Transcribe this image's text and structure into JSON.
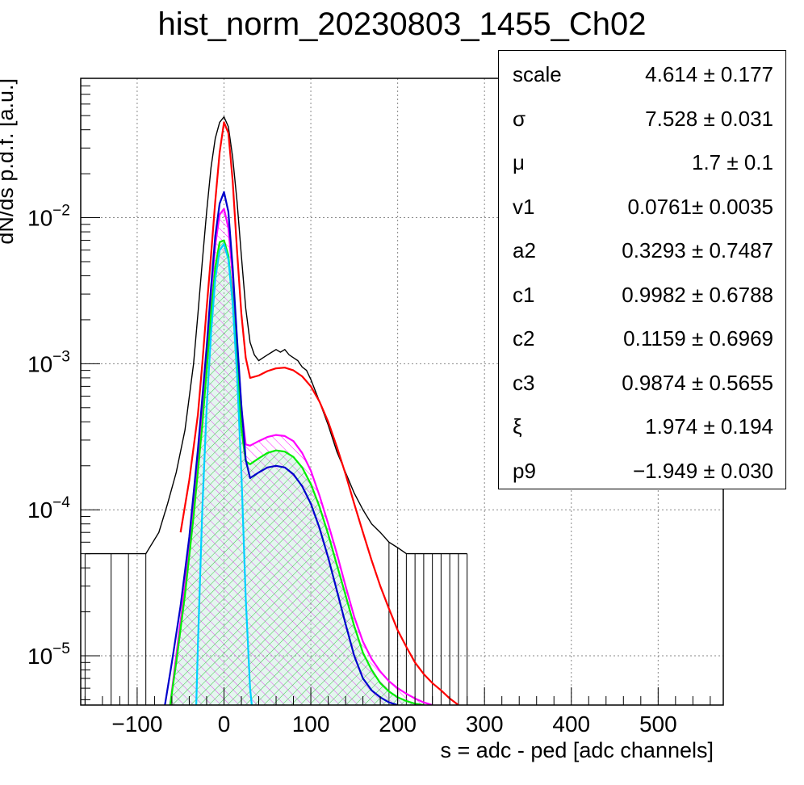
{
  "chart_data": {
    "type": "line",
    "title": "hist_norm_20230803_1455_Ch02",
    "xlabel": "s = adc - ped [adc channels]",
    "ylabel": "dN/ds p.d.f. [a.u.]",
    "xlim": [
      -165,
      575
    ],
    "ylim": [
      4.6e-06,
      0.09
    ],
    "yscale": "log",
    "grid": true,
    "x_ticks": [
      -100,
      0,
      100,
      200,
      300,
      400,
      500
    ],
    "x_tick_labels": [
      "−100",
      "0",
      "100",
      "200",
      "300",
      "400",
      "500"
    ],
    "y_ticks": [
      1e-05,
      0.0001,
      0.001,
      0.01
    ],
    "y_tick_mantissa": "10",
    "y_tick_exponents": [
      "−5",
      "−4",
      "−3",
      "−2"
    ],
    "stats_legend_placement": "top-right",
    "stats": [
      {
        "name": "scale",
        "value": "4.614 ± 0.177"
      },
      {
        "name": "σ",
        "value": "7.528 ± 0.031"
      },
      {
        "name": "μ",
        "value": "1.7 ± 0.1"
      },
      {
        "name": "v1",
        "value": "0.0761± 0.0035"
      },
      {
        "name": "a2",
        "value": "0.3293 ± 0.7487"
      },
      {
        "name": "c1",
        "value": "0.9982 ± 0.6788"
      },
      {
        "name": "c2",
        "value": "0.1159 ± 0.6969"
      },
      {
        "name": "c3",
        "value": "0.9874 ± 0.5655"
      },
      {
        "name": "ξ",
        "value": "1.974 ± 0.194"
      },
      {
        "name": "p9",
        "value": "−1.949 ± 0.030"
      }
    ],
    "series": [
      {
        "color": "#000000",
        "style": "histogram",
        "x": [
          -160,
          -130,
          -110,
          -90,
          -75,
          -65,
          -55,
          -45,
          -35,
          -30,
          -25,
          -20,
          -15,
          -10,
          -5,
          0,
          5,
          10,
          15,
          20,
          25,
          30,
          35,
          40,
          45,
          50,
          55,
          60,
          65,
          70,
          75,
          80,
          85,
          90,
          95,
          100,
          110,
          120,
          130,
          140,
          150,
          160,
          170,
          180,
          190,
          200,
          210,
          220,
          230,
          240,
          250,
          260,
          270,
          280
        ],
        "y": [
          5e-05,
          5e-05,
          5e-05,
          5e-05,
          7e-05,
          0.00011,
          0.00018,
          0.00035,
          0.001,
          0.0022,
          0.005,
          0.011,
          0.022,
          0.035,
          0.045,
          0.049,
          0.042,
          0.026,
          0.013,
          0.0055,
          0.0024,
          0.0014,
          0.00115,
          0.00105,
          0.0011,
          0.00115,
          0.0012,
          0.00125,
          0.0012,
          0.00125,
          0.00115,
          0.0011,
          0.00105,
          0.00095,
          0.0009,
          0.00078,
          0.00055,
          0.00038,
          0.00025,
          0.00018,
          0.00013,
          0.0001,
          8e-05,
          7e-05,
          6e-05,
          5.5e-05,
          5e-05,
          5e-05,
          5e-05,
          5e-05,
          5e-05,
          5e-05,
          5e-05,
          5e-05
        ]
      },
      {
        "color": "#ff0000",
        "style": "line",
        "x": [
          -50,
          -40,
          -30,
          -25,
          -20,
          -15,
          -10,
          -5,
          0,
          5,
          10,
          15,
          20,
          25,
          30,
          40,
          50,
          60,
          70,
          80,
          90,
          100,
          110,
          120,
          130,
          140,
          150,
          160,
          170,
          180,
          190,
          200,
          210,
          220,
          230,
          240,
          250,
          260,
          270
        ],
        "y": [
          7e-05,
          0.00016,
          0.00045,
          0.001,
          0.0024,
          0.0055,
          0.013,
          0.028,
          0.045,
          0.038,
          0.018,
          0.006,
          0.0022,
          0.0011,
          0.0008,
          0.00083,
          0.00089,
          0.00093,
          0.00094,
          0.0009,
          0.00082,
          0.0007,
          0.00055,
          0.0004,
          0.00027,
          0.000175,
          0.00011,
          7e-05,
          4.5e-05,
          3e-05,
          2.1e-05,
          1.5e-05,
          1.15e-05,
          9e-06,
          7.5e-06,
          6.5e-06,
          5.8e-06,
          5.1e-06,
          4.6e-06
        ]
      },
      {
        "color": "#ff00ff",
        "style": "hatched-area",
        "x": [
          -62,
          -55,
          -45,
          -35,
          -25,
          -20,
          -15,
          -10,
          -5,
          0,
          5,
          10,
          15,
          20,
          25,
          30,
          40,
          50,
          60,
          70,
          80,
          90,
          100,
          110,
          120,
          130,
          140,
          150,
          160,
          170,
          180,
          190,
          200,
          210,
          220,
          230,
          240
        ],
        "y": [
          4.6e-06,
          1e-05,
          3e-05,
          0.00011,
          0.0005,
          0.0012,
          0.003,
          0.0065,
          0.0105,
          0.0115,
          0.0085,
          0.004,
          0.0014,
          0.0005,
          0.00028,
          0.000275,
          0.000295,
          0.000315,
          0.000325,
          0.00032,
          0.000295,
          0.000245,
          0.000185,
          0.000125,
          8e-05,
          5e-05,
          3e-05,
          1.85e-05,
          1.25e-05,
          9.5e-06,
          7.8e-06,
          6.7e-06,
          6e-06,
          5.5e-06,
          5.1e-06,
          4.8e-06,
          4.6e-06
        ]
      },
      {
        "color": "#00ee00",
        "style": "hatched-area",
        "x": [
          -62,
          -55,
          -45,
          -35,
          -25,
          -20,
          -15,
          -10,
          -5,
          0,
          5,
          10,
          15,
          20,
          25,
          30,
          40,
          50,
          60,
          70,
          80,
          90,
          100,
          110,
          120,
          130,
          140,
          150,
          160,
          170,
          180,
          190,
          200,
          210,
          220,
          230
        ],
        "y": [
          4.6e-06,
          9e-06,
          2.6e-05,
          9e-05,
          0.00038,
          0.0009,
          0.0022,
          0.0046,
          0.0068,
          0.007,
          0.0055,
          0.0028,
          0.001,
          0.00036,
          0.000215,
          0.000205,
          0.000225,
          0.000245,
          0.000255,
          0.00025,
          0.00023,
          0.000195,
          0.00015,
          0.000105,
          6.8e-05,
          4.2e-05,
          2.6e-05,
          1.6e-05,
          1.05e-05,
          8e-06,
          6.5e-06,
          5.7e-06,
          5.2e-06,
          4.9e-06,
          4.7e-06,
          4.6e-06
        ]
      },
      {
        "color": "#0000cc",
        "style": "line",
        "x": [
          -68,
          -60,
          -50,
          -40,
          -30,
          -20,
          -15,
          -10,
          -5,
          0,
          5,
          10,
          15,
          20,
          25,
          30,
          40,
          50,
          60,
          70,
          80,
          90,
          100,
          110,
          120,
          130,
          140,
          150,
          160,
          170,
          180,
          190,
          200
        ],
        "y": [
          4.6e-06,
          9e-06,
          2.2e-05,
          6.5e-05,
          0.00026,
          0.0013,
          0.0033,
          0.0075,
          0.0125,
          0.015,
          0.011,
          0.0046,
          0.0015,
          0.00052,
          0.00022,
          0.000165,
          0.00018,
          0.000195,
          0.0002,
          0.000195,
          0.000175,
          0.000145,
          0.00011,
          7.5e-05,
          4.7e-05,
          2.8e-05,
          1.65e-05,
          1e-05,
          7e-06,
          5.8e-06,
          5.2e-06,
          4.8e-06,
          4.6e-06
        ]
      },
      {
        "color": "#00d0ff",
        "style": "line",
        "x": [
          -32,
          -30,
          -25,
          -20,
          -15,
          -10,
          -5,
          0,
          5,
          10,
          15,
          20,
          25,
          30,
          32
        ],
        "y": [
          4.6e-06,
          1.2e-05,
          0.0001,
          0.0005,
          0.0016,
          0.0038,
          0.006,
          0.0066,
          0.0052,
          0.0026,
          0.00085,
          0.00018,
          2.5e-05,
          6e-06,
          4.6e-06
        ]
      }
    ]
  }
}
